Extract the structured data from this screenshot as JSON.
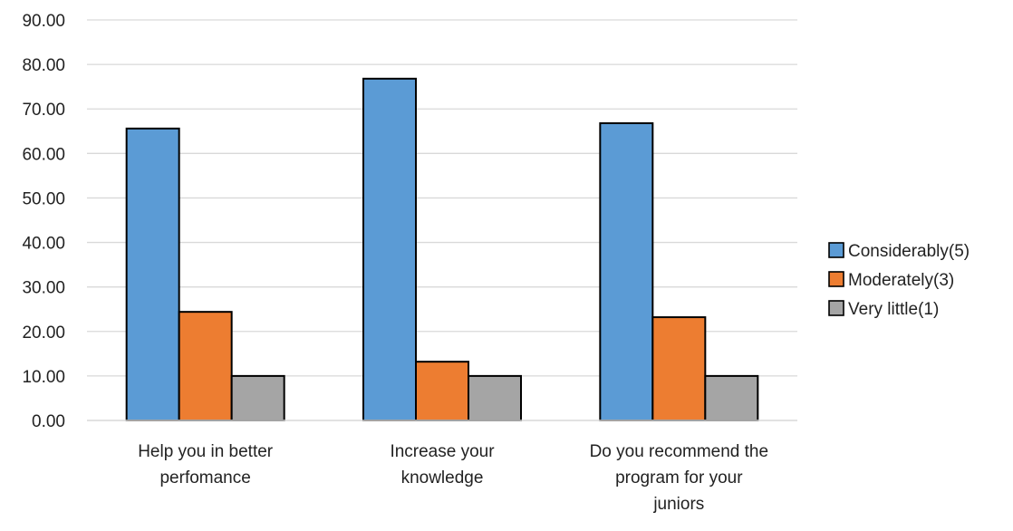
{
  "chart_data": {
    "type": "bar",
    "title": "",
    "xlabel": "",
    "ylabel": "",
    "categories": [
      [
        "Help you in better",
        "perfomance"
      ],
      [
        "Increase your",
        "knowledge"
      ],
      [
        "Do you recommend the",
        "program for your",
        "juniors"
      ]
    ],
    "series": [
      {
        "name": "Considerably(5)",
        "color": "#5b9bd5",
        "values": [
          65.6,
          76.8,
          66.8
        ]
      },
      {
        "name": "Moderately(3)",
        "color": "#ed7d31",
        "values": [
          24.4,
          13.2,
          23.2
        ]
      },
      {
        "name": "Very little(1)",
        "color": "#a5a5a5",
        "values": [
          10.0,
          10.0,
          10.0
        ]
      }
    ],
    "ylim": [
      0,
      90
    ],
    "yticks": [
      "0.00",
      "10.00",
      "20.00",
      "30.00",
      "40.00",
      "50.00",
      "60.00",
      "70.00",
      "80.00",
      "90.00"
    ],
    "grid": true,
    "legend": "right"
  }
}
